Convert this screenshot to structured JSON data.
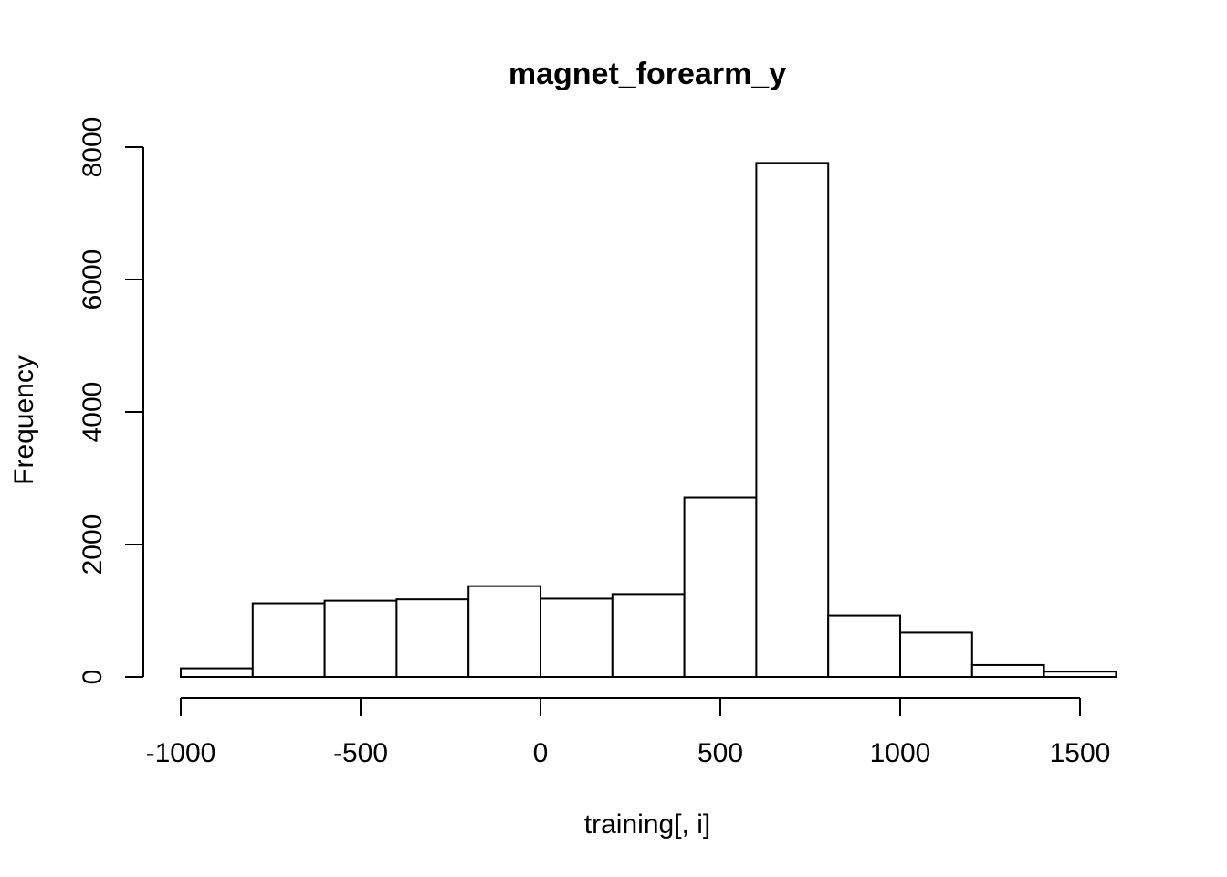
{
  "chart_data": {
    "type": "bar",
    "title": "magnet_forearm_y",
    "xlabel": "training[, i]",
    "ylabel": "Frequency",
    "bin_edges": [
      -1000,
      -800,
      -600,
      -400,
      -200,
      0,
      200,
      400,
      600,
      800,
      1000,
      1200,
      1400,
      1600
    ],
    "values": [
      130,
      1110,
      1150,
      1170,
      1370,
      1180,
      1250,
      2710,
      7760,
      930,
      670,
      180,
      80
    ],
    "x_ticks": [
      -1000,
      -500,
      0,
      500,
      1000,
      1500
    ],
    "x_tick_labels": [
      "-1000",
      "-500",
      "0",
      "500",
      "1000",
      "1500"
    ],
    "y_ticks": [
      0,
      2000,
      4000,
      6000,
      8000
    ],
    "y_tick_labels": [
      "0",
      "2000",
      "4000",
      "6000",
      "8000"
    ],
    "xlim": [
      -1000,
      1600
    ],
    "ylim": [
      0,
      8000
    ],
    "grid": false,
    "legend": "none"
  }
}
